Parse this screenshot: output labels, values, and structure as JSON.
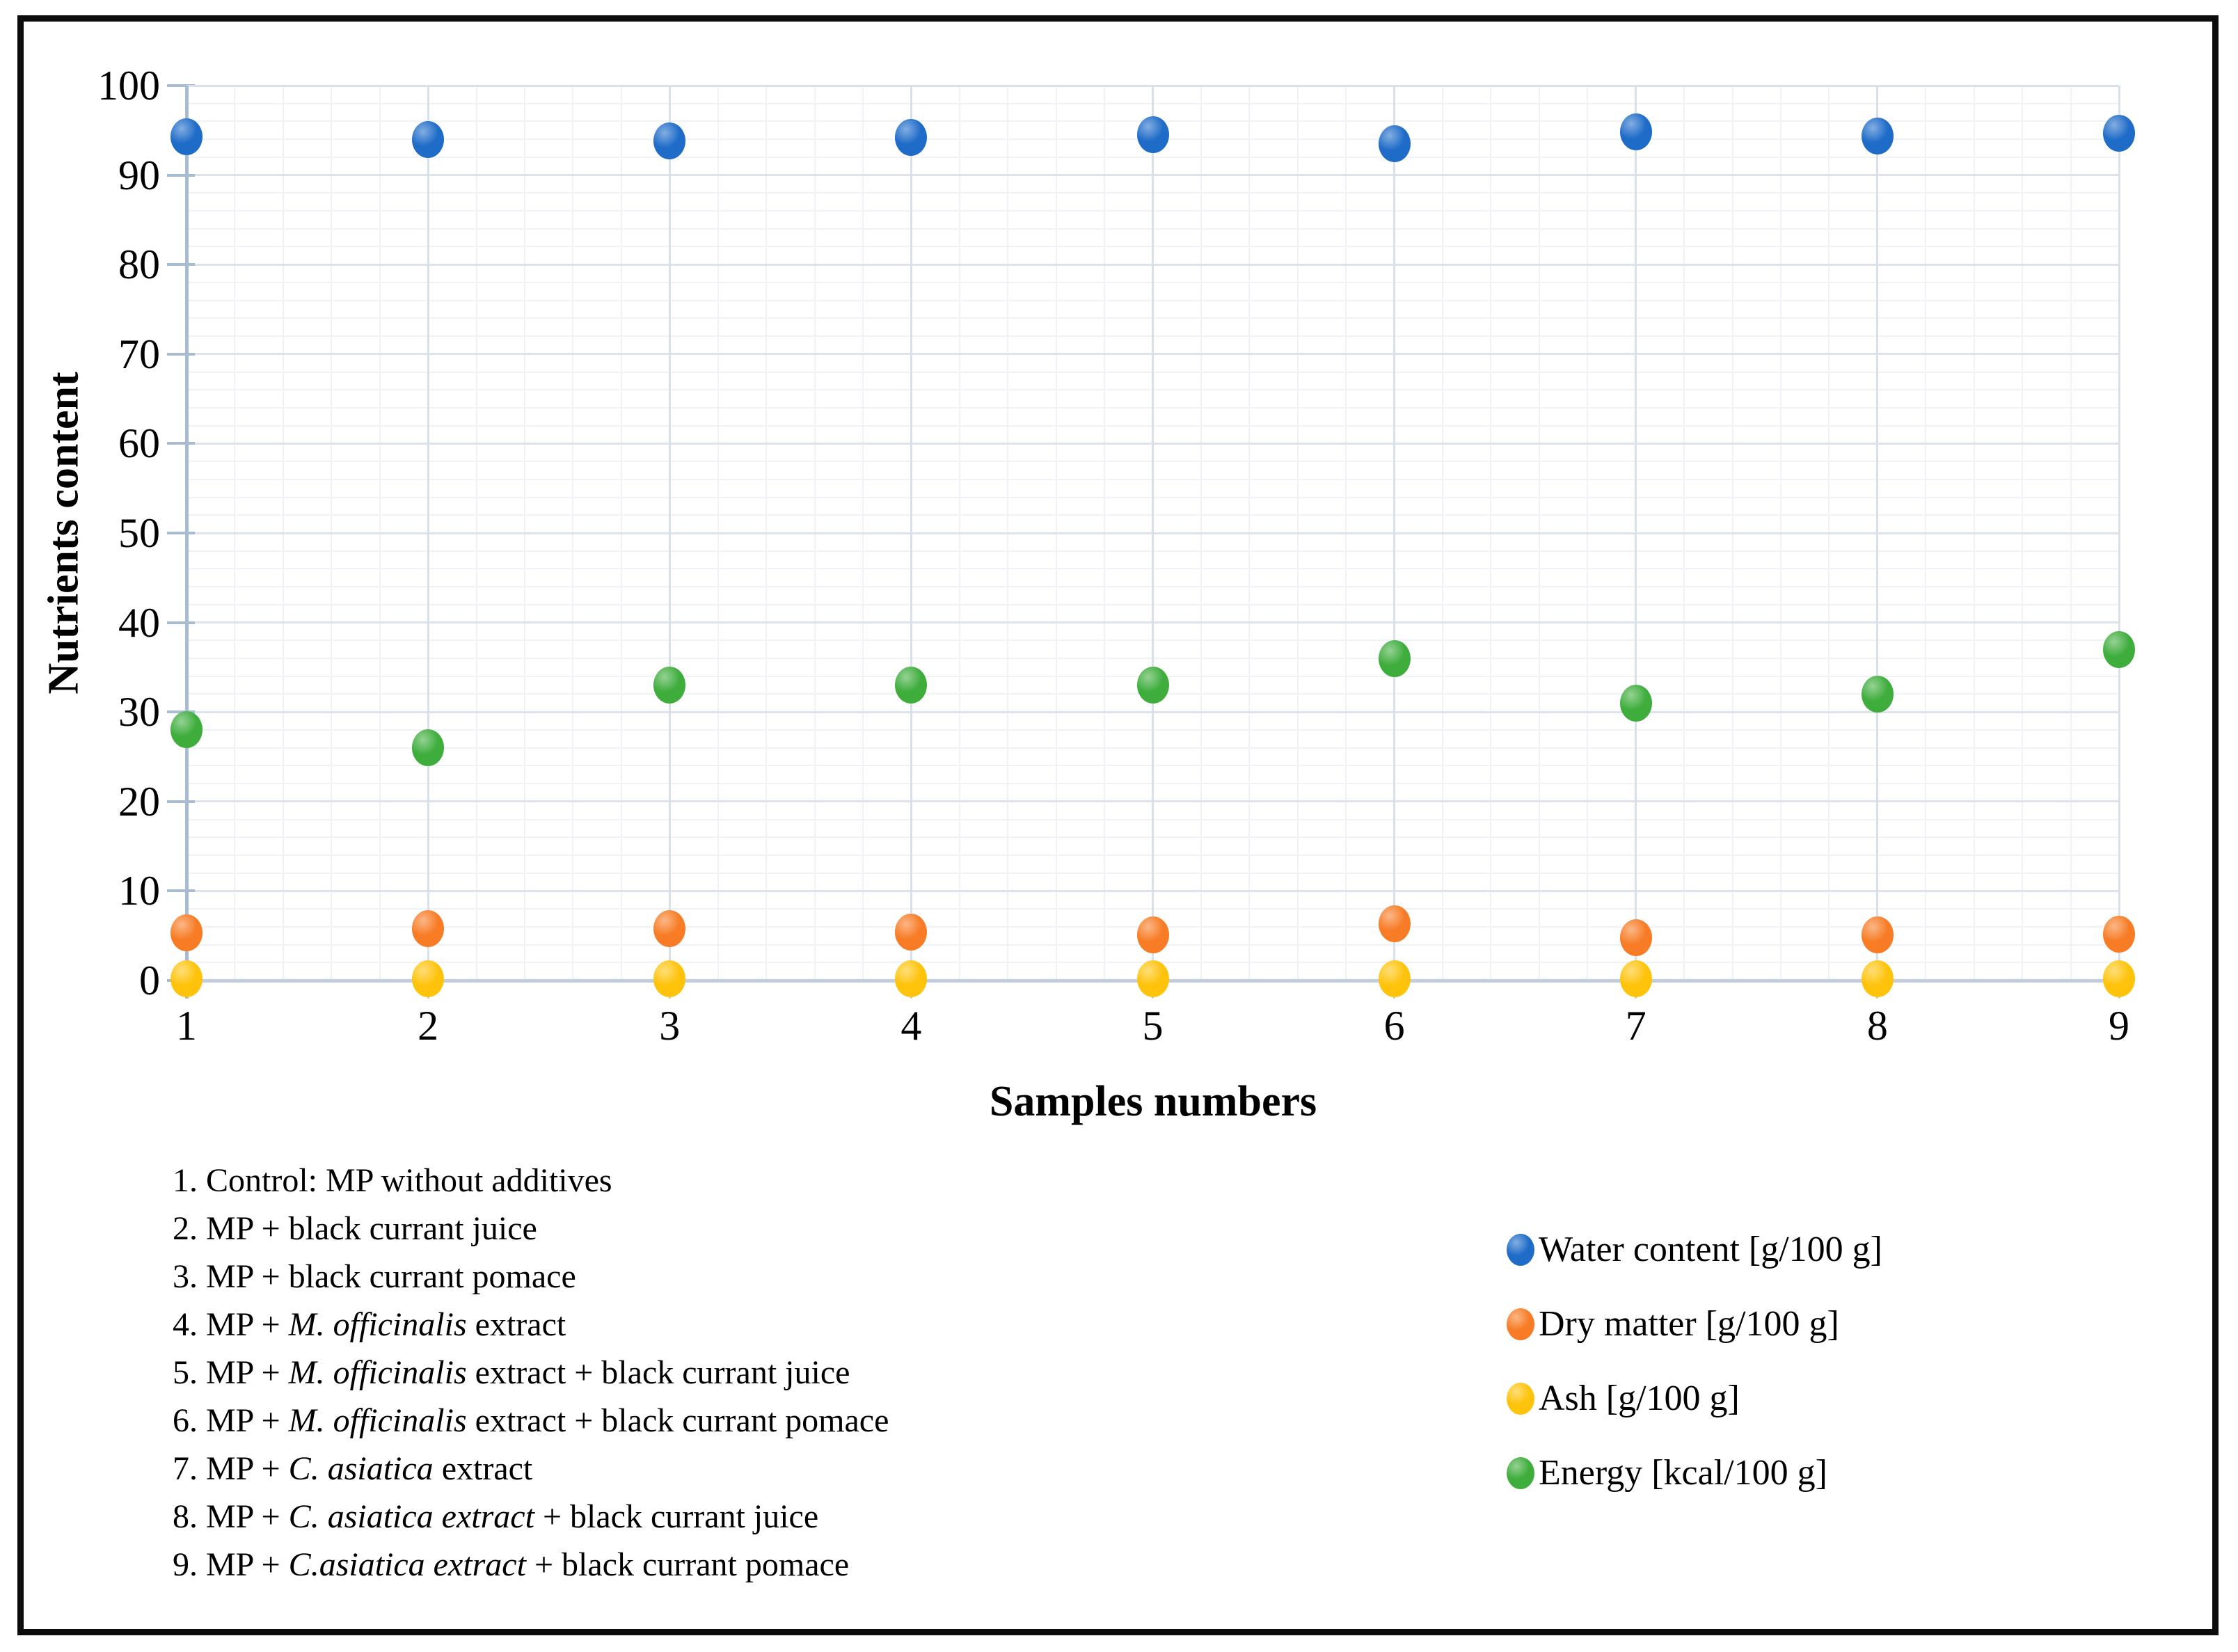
{
  "figure": {
    "background": "#ffffff",
    "border_color": "#0c0c0c"
  },
  "chart_data": {
    "type": "scatter",
    "title": "",
    "xlabel": "Samples numbers",
    "ylabel": "Nutrients content",
    "x_ticks": [
      "1",
      "2",
      "3",
      "4",
      "5",
      "6",
      "7",
      "8",
      "9"
    ],
    "ylim": [
      0,
      100
    ],
    "y_major_tick": 10,
    "y_minor_tick": 2,
    "grid": true,
    "legend_position": "bottom-right",
    "series": [
      {
        "name": "Water content [g/100 g]",
        "color": "#1e6bc8",
        "values": [
          94.3,
          94.0,
          93.8,
          94.2,
          94.5,
          93.5,
          94.8,
          94.4,
          94.7
        ]
      },
      {
        "name": "Dry matter [g/100 g]",
        "color": "#f77c25",
        "values": [
          5.3,
          5.8,
          5.8,
          5.4,
          5.1,
          6.3,
          4.8,
          5.1,
          5.2
        ]
      },
      {
        "name": "Ash [g/100 g]",
        "color": "#ffc30b",
        "values": [
          0.2,
          0.2,
          0.2,
          0.2,
          0.2,
          0.2,
          0.2,
          0.2,
          0.2
        ]
      },
      {
        "name": "Energy [kcal/100 g]",
        "color": "#3ead3c",
        "values": [
          28,
          26,
          33,
          33,
          33,
          36,
          31,
          32,
          37
        ]
      }
    ]
  },
  "footnotes": [
    {
      "segments": [
        {
          "t": "1. Control: MP without additives"
        }
      ]
    },
    {
      "segments": [
        {
          "t": "2. MP + black currant juice"
        }
      ]
    },
    {
      "segments": [
        {
          "t": "3. MP + black currant pomace"
        }
      ]
    },
    {
      "segments": [
        {
          "t": "4. MP + "
        },
        {
          "t": "M. officinalis",
          "i": true
        },
        {
          "t": " extract"
        }
      ]
    },
    {
      "segments": [
        {
          "t": "5. MP + "
        },
        {
          "t": "M. officinalis",
          "i": true
        },
        {
          "t": " extract + black currant juice"
        }
      ]
    },
    {
      "segments": [
        {
          "t": "6. MP + "
        },
        {
          "t": "M. officinalis",
          "i": true
        },
        {
          "t": " extract + black currant pomace"
        }
      ]
    },
    {
      "segments": [
        {
          "t": "7. MP + "
        },
        {
          "t": "C. asiatica",
          "i": true
        },
        {
          "t": " extract"
        }
      ]
    },
    {
      "segments": [
        {
          "t": "8. MP + "
        },
        {
          "t": "C. asiatica extract",
          "i": true
        },
        {
          "t": " + black currant juice"
        }
      ]
    },
    {
      "segments": [
        {
          "t": "9. MP + "
        },
        {
          "t": "C.asiatica extract",
          "i": true
        },
        {
          "t": " + black currant pomace"
        }
      ]
    }
  ]
}
